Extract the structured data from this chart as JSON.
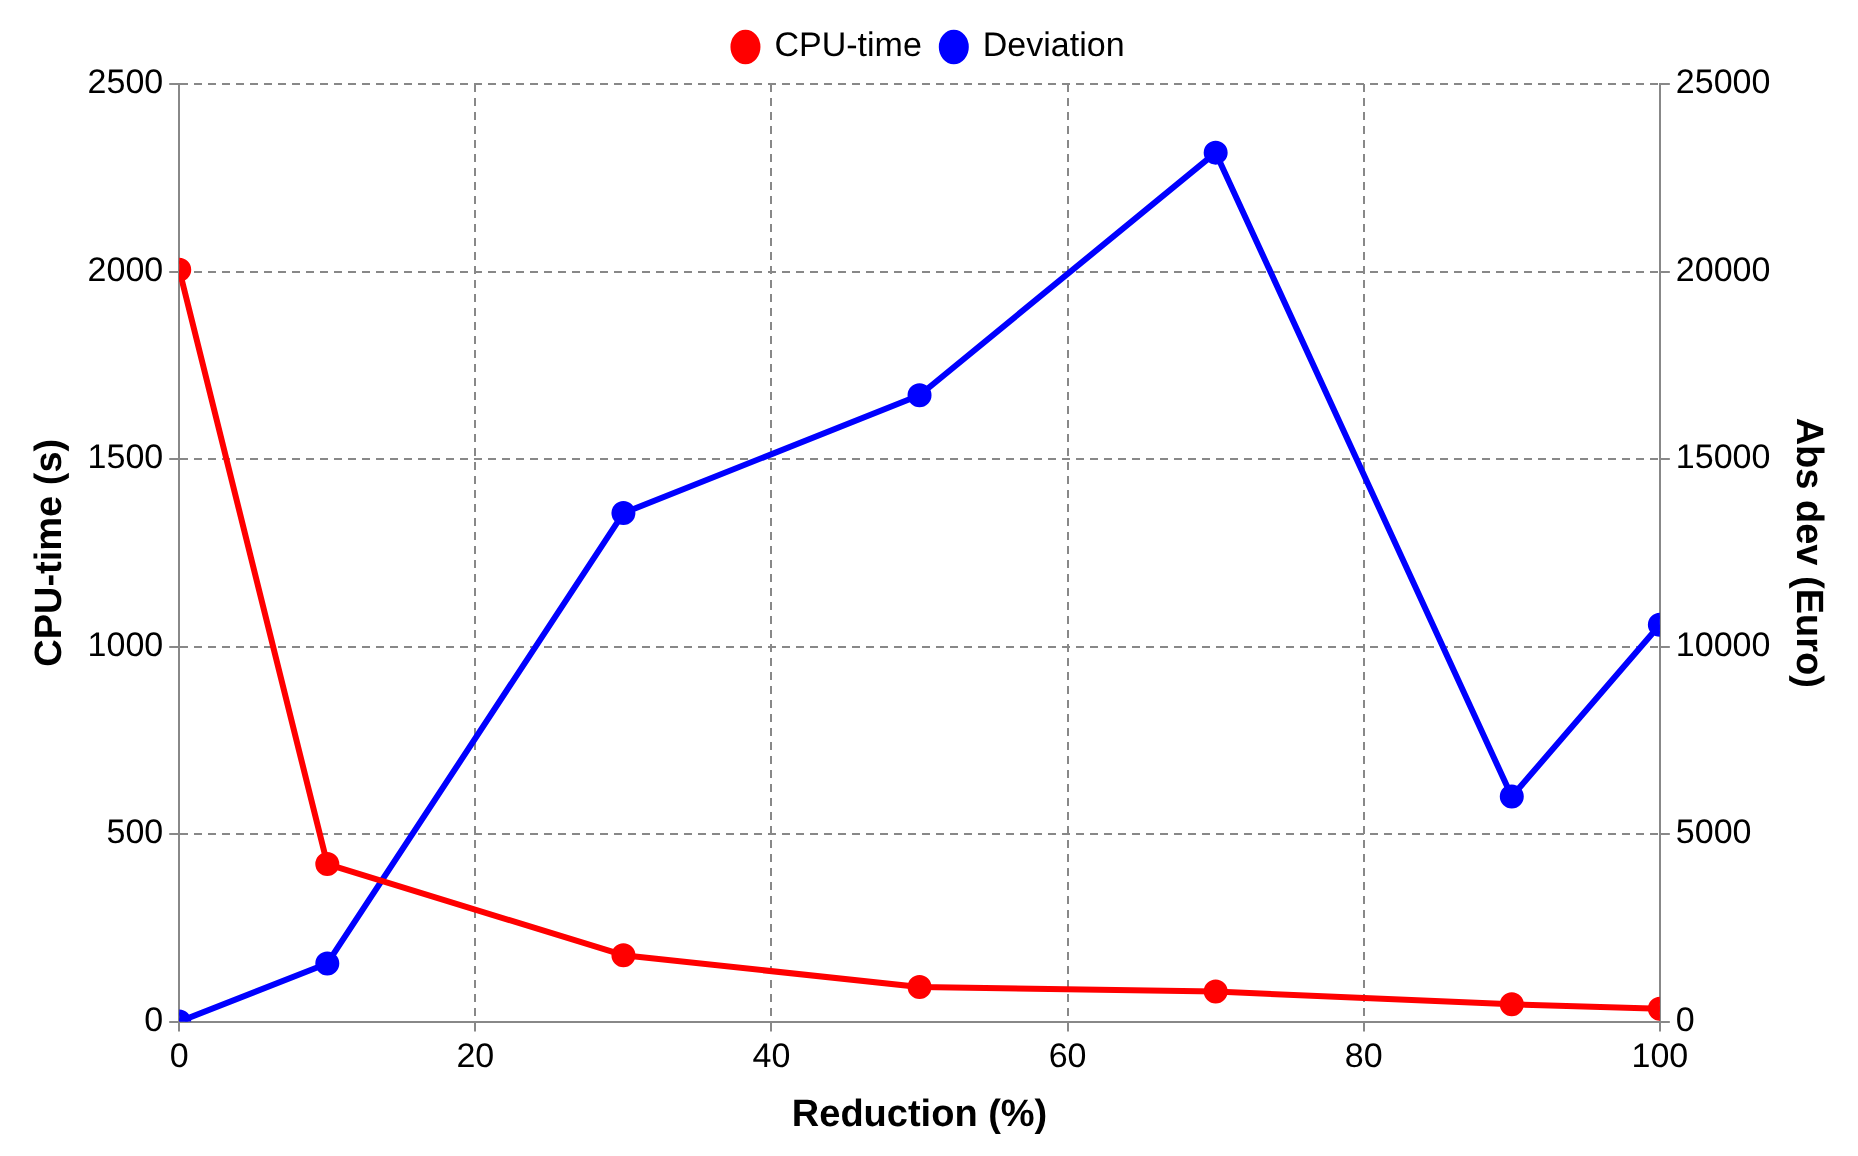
{
  "chart_data": {
    "type": "line",
    "xlabel": "Reduction (%)",
    "ylabel": "CPU-time (s)",
    "y2label": "Abs dev (Euro)",
    "x": [
      0,
      10,
      30,
      50,
      70,
      90,
      100
    ],
    "series": [
      {
        "name": "CPU-time",
        "color": "#ff0000",
        "values": [
          2005,
          420,
          177,
          92,
          80,
          46,
          34
        ]
      },
      {
        "name": "Deviation",
        "color": "#0000ff",
        "axis": "y2",
        "values": [
          0,
          1550,
          13560,
          16700,
          23170,
          6000,
          10580
        ]
      }
    ],
    "xlim": [
      0,
      100
    ],
    "xticks": [
      0,
      20,
      40,
      60,
      80,
      100
    ],
    "ylim": [
      0,
      2500
    ],
    "yticks": [
      0,
      500,
      1000,
      1500,
      2000,
      2500
    ],
    "y2lim": [
      0,
      25000
    ],
    "y2ticks": [
      0,
      5000,
      10000,
      15000,
      20000,
      25000
    ],
    "grid": true,
    "legend": "top",
    "marker": "circle",
    "line_style": "solid"
  }
}
